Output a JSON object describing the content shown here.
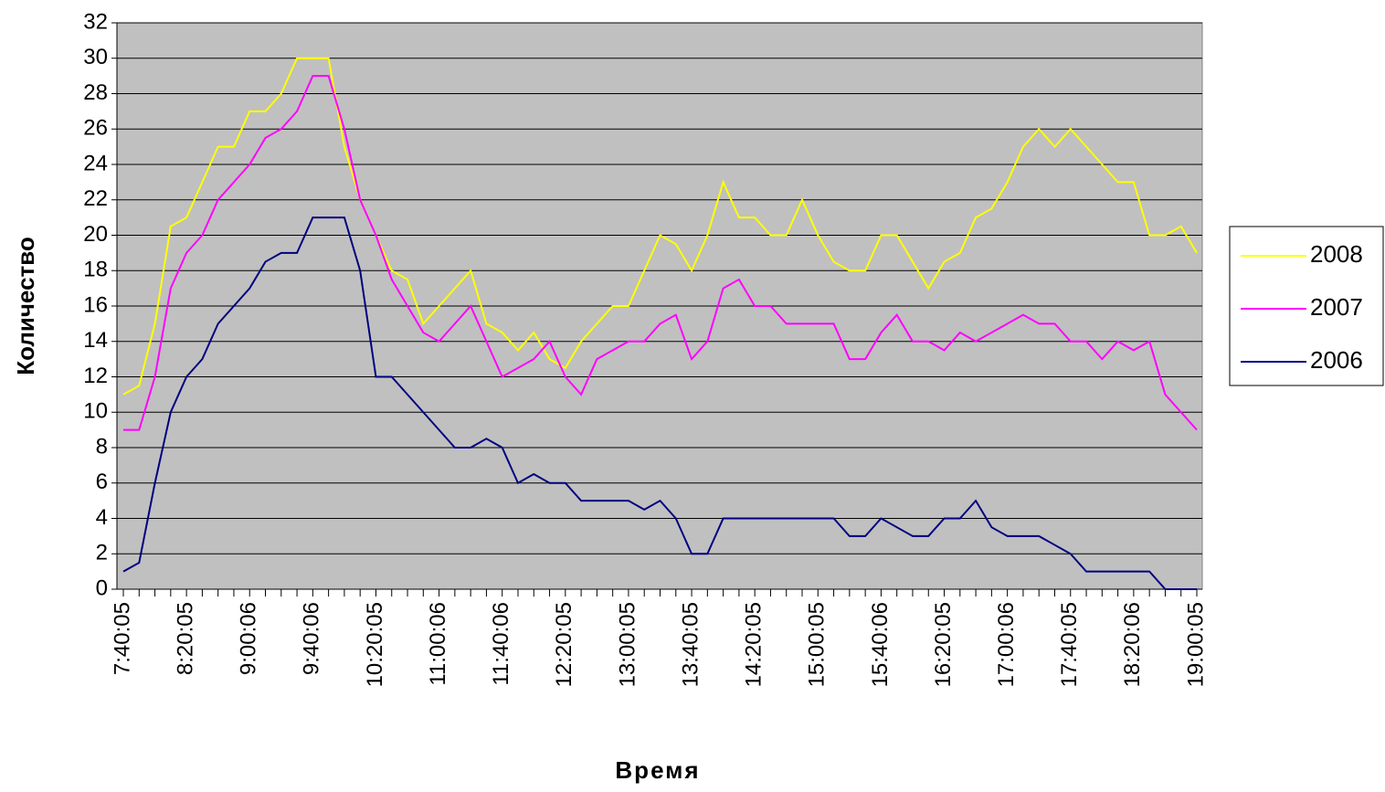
{
  "chart_data": {
    "type": "line",
    "x_label": "Время",
    "y_label": "Количество",
    "categories": [
      "7:40:05",
      null,
      null,
      null,
      "8:20:05",
      null,
      null,
      null,
      "9:00:06",
      null,
      null,
      null,
      "9:40:06",
      null,
      null,
      null,
      "10:20:05",
      null,
      null,
      null,
      "11:00:06",
      null,
      null,
      null,
      "11:40:06",
      null,
      null,
      null,
      "12:20:05",
      null,
      null,
      null,
      "13:00:05",
      null,
      null,
      null,
      "13:40:05",
      null,
      null,
      null,
      "14:20:05",
      null,
      null,
      null,
      "15:00:05",
      null,
      null,
      null,
      "15:40:06",
      null,
      null,
      null,
      "16:20:05",
      null,
      null,
      null,
      "17:00:06",
      null,
      null,
      null,
      "17:40:05",
      null,
      null,
      null,
      "18:20:06",
      null,
      null,
      null,
      "19:00:05"
    ],
    "series": [
      {
        "name": "2008",
        "color": "#ffff00",
        "values": [
          11,
          11.5,
          15,
          20.5,
          21,
          23,
          25,
          25,
          27,
          27,
          28,
          30,
          30,
          30,
          25,
          22,
          20,
          18,
          17.5,
          15,
          16,
          17,
          18,
          15,
          14.5,
          13.5,
          14.5,
          13,
          12.5,
          14,
          15,
          16,
          16,
          18,
          20,
          19.5,
          18,
          20,
          23,
          21,
          21,
          20,
          20,
          22,
          20,
          18.5,
          18,
          18,
          20,
          20,
          18.5,
          17,
          18.5,
          19,
          21,
          21.5,
          23,
          25,
          26,
          25,
          26,
          25,
          24,
          23,
          23,
          20,
          20,
          20.5,
          19
        ]
      },
      {
        "name": "2007",
        "color": "#ff00ff",
        "values": [
          9,
          9,
          12,
          17,
          19,
          20,
          22,
          23,
          24,
          25.5,
          26,
          27,
          29,
          29,
          26,
          22,
          20,
          17.5,
          16,
          14.5,
          14,
          15,
          16,
          14,
          12,
          12.5,
          13,
          14,
          12,
          11,
          13,
          13.5,
          14,
          14,
          15,
          15.5,
          13,
          14,
          17,
          17.5,
          16,
          16,
          15,
          15,
          15,
          15,
          13,
          13,
          14.5,
          15.5,
          14,
          14,
          13.5,
          14.5,
          14,
          14.5,
          15,
          15.5,
          15,
          15,
          14,
          14,
          13,
          14,
          13.5,
          14,
          11,
          10,
          9
        ]
      },
      {
        "name": "2006",
        "color": "#000080",
        "values": [
          1,
          1.5,
          6,
          10,
          12,
          13,
          15,
          16,
          17,
          18.5,
          19,
          19,
          21,
          21,
          21,
          18,
          12,
          12,
          11,
          10,
          9,
          8,
          8,
          8.5,
          8,
          6,
          6.5,
          6,
          6,
          5,
          5,
          5,
          5,
          4.5,
          5,
          4,
          2,
          2,
          4,
          4,
          4,
          4,
          4,
          4,
          4,
          4,
          3,
          3,
          4,
          3.5,
          3,
          3,
          4,
          4,
          5,
          3.5,
          3,
          3,
          3,
          2.5,
          2,
          1,
          1,
          1,
          1,
          1,
          0,
          0,
          0
        ]
      }
    ],
    "ylim": [
      0,
      32
    ],
    "yticks": [
      0,
      2,
      4,
      6,
      8,
      10,
      12,
      14,
      16,
      18,
      20,
      22,
      24,
      26,
      28,
      30,
      32
    ],
    "grid": true,
    "legend": "right",
    "plot_background": "#c0c0c0"
  }
}
